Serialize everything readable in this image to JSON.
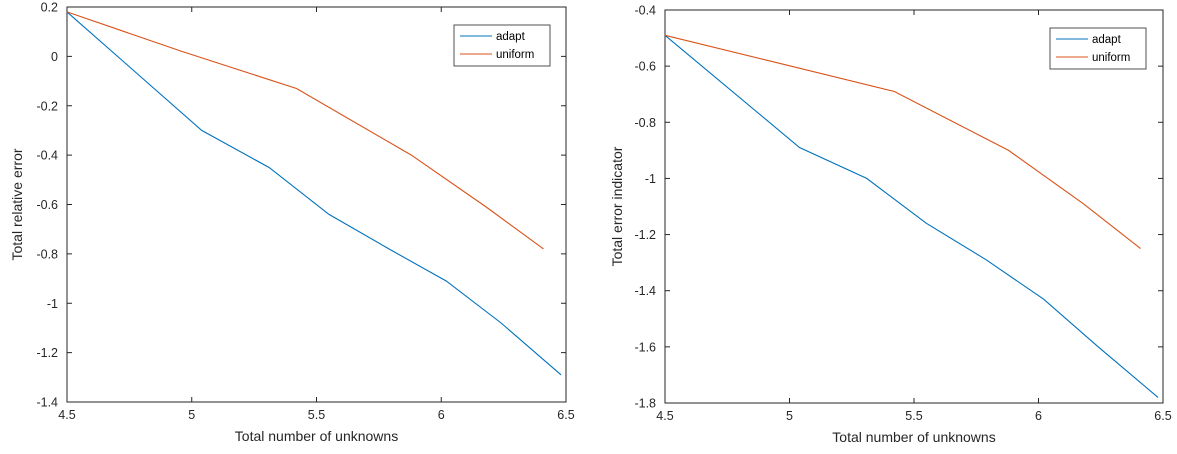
{
  "chart_data": [
    {
      "type": "line",
      "xlabel": "Total number of unknowns",
      "ylabel": "Total relative error",
      "xlim": [
        4.5,
        6.5
      ],
      "ylim": [
        -1.4,
        0.2
      ],
      "xticks": [
        "4.5",
        "5",
        "5.5",
        "6",
        "6.5"
      ],
      "yticks": [
        "0.2",
        "0",
        "-0.2",
        "-0.4",
        "-0.6",
        "-0.8",
        "-1",
        "-1.2",
        "-1.4"
      ],
      "grid": false,
      "legend_position": "top-right",
      "series": [
        {
          "name": "adapt",
          "color": "#0072BD",
          "x": [
            4.5,
            5.04,
            5.31,
            5.55,
            5.79,
            6.02,
            6.24,
            6.48
          ],
          "y": [
            0.18,
            -0.3,
            -0.45,
            -0.64,
            -0.78,
            -0.91,
            -1.08,
            -1.29
          ]
        },
        {
          "name": "uniform",
          "color": "#D95319",
          "x": [
            4.5,
            4.96,
            5.42,
            5.88,
            6.18,
            6.41
          ],
          "y": [
            0.18,
            0.02,
            -0.13,
            -0.4,
            -0.61,
            -0.78
          ]
        }
      ]
    },
    {
      "type": "line",
      "xlabel": "Total number of unknowns",
      "ylabel": "Total error indicator",
      "xlim": [
        4.5,
        6.5
      ],
      "ylim": [
        -1.8,
        -0.4
      ],
      "xticks": [
        "4.5",
        "5",
        "5.5",
        "6",
        "6.5"
      ],
      "yticks": [
        "-0.4",
        "-0.6",
        "-0.8",
        "-1",
        "-1.2",
        "-1.4",
        "-1.6",
        "-1.8"
      ],
      "grid": false,
      "legend_position": "top-right",
      "series": [
        {
          "name": "adapt",
          "color": "#0072BD",
          "x": [
            4.5,
            5.04,
            5.31,
            5.55,
            5.79,
            6.02,
            6.24,
            6.48
          ],
          "y": [
            -0.49,
            -0.89,
            -1.0,
            -1.16,
            -1.29,
            -1.43,
            -1.6,
            -1.78
          ]
        },
        {
          "name": "uniform",
          "color": "#D95319",
          "x": [
            4.5,
            4.96,
            5.42,
            5.88,
            6.18,
            6.41
          ],
          "y": [
            -0.49,
            -0.59,
            -0.69,
            -0.9,
            -1.09,
            -1.25
          ]
        }
      ]
    }
  ]
}
